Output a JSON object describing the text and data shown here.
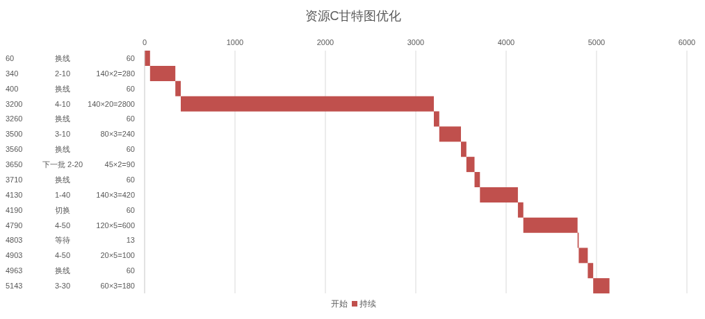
{
  "chart_data": {
    "type": "bar",
    "title": "资源C甘特图优化",
    "orientation": "horizontal",
    "categories": [
      "60\n换线\n60",
      "340\n2-10\n140×2=280",
      "400\n换线\n60",
      "3200\n4-10\n140×20=2800",
      "3260\n换线\n60",
      "3500\n3-10\n80×3=240",
      "3560\n换线\n60",
      "3650\n下一批 2-20\n45×2=90",
      "3710\n换线\n60",
      "4130\n1-40\n140×3=420",
      "4190\n切换\n60",
      "4790\n4-50\n120×5=600",
      "4803\n等待\n13",
      "4903\n4-50\n20×5=100",
      "4963\n换线\n60",
      "5143\n3-30\n60×3=180"
    ],
    "series": [
      {
        "name": "持续",
        "color": "#c0504d",
        "base": [
          0,
          60,
          340,
          400,
          3200,
          3260,
          3500,
          3560,
          3650,
          3710,
          4130,
          4190,
          4790,
          4803,
          4903,
          4963
        ],
        "values": [
          60,
          280,
          60,
          2800,
          60,
          240,
          60,
          90,
          60,
          420,
          60,
          600,
          13,
          100,
          60,
          180
        ]
      }
    ],
    "annotations": [
      "开始"
    ],
    "xlim": [
      0,
      6000
    ],
    "xticks": [
      0,
      1000,
      2000,
      3000,
      4000,
      5000,
      6000
    ],
    "grid": "x",
    "legend": "bottom"
  }
}
